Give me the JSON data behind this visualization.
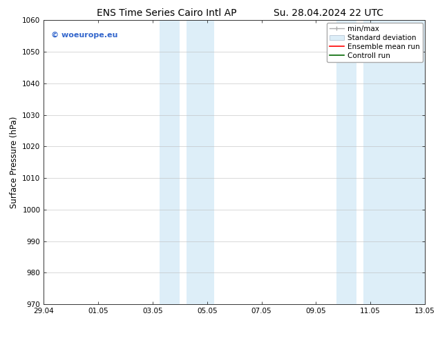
{
  "title_left": "ENS Time Series Cairo Intl AP",
  "title_right": "Su. 28.04.2024 22 UTC",
  "ylabel": "Surface Pressure (hPa)",
  "ylim": [
    970,
    1060
  ],
  "yticks": [
    970,
    980,
    990,
    1000,
    1010,
    1020,
    1030,
    1040,
    1050,
    1060
  ],
  "xtick_labels": [
    "29.04",
    "01.05",
    "03.05",
    "05.05",
    "07.05",
    "09.05",
    "11.05",
    "13.05"
  ],
  "xtick_positions": [
    0,
    2,
    4,
    6,
    8,
    10,
    12,
    14
  ],
  "x_min": 0,
  "x_max": 14,
  "shaded_bands": [
    {
      "x_start": 4.25,
      "x_end": 5.0,
      "color": "#ddeef8"
    },
    {
      "x_start": 5.25,
      "x_end": 6.25,
      "color": "#ddeef8"
    },
    {
      "x_start": 10.75,
      "x_end": 11.5,
      "color": "#ddeef8"
    },
    {
      "x_start": 11.75,
      "x_end": 14.0,
      "color": "#ddeef8"
    }
  ],
  "watermark_text": "© woeurope.eu",
  "watermark_color": "#3366cc",
  "legend_items": [
    {
      "label": "min/max",
      "color": "#aaaaaa",
      "style": "errorbar"
    },
    {
      "label": "Standard deviation",
      "color": "#ccddee",
      "style": "rect"
    },
    {
      "label": "Ensemble mean run",
      "color": "red",
      "style": "line"
    },
    {
      "label": "Controll run",
      "color": "green",
      "style": "line"
    }
  ],
  "background_color": "#ffffff",
  "grid_color": "#bbbbbb",
  "tick_label_fontsize": 7.5,
  "title_fontsize": 10,
  "ylabel_fontsize": 8.5,
  "legend_fontsize": 7.5
}
